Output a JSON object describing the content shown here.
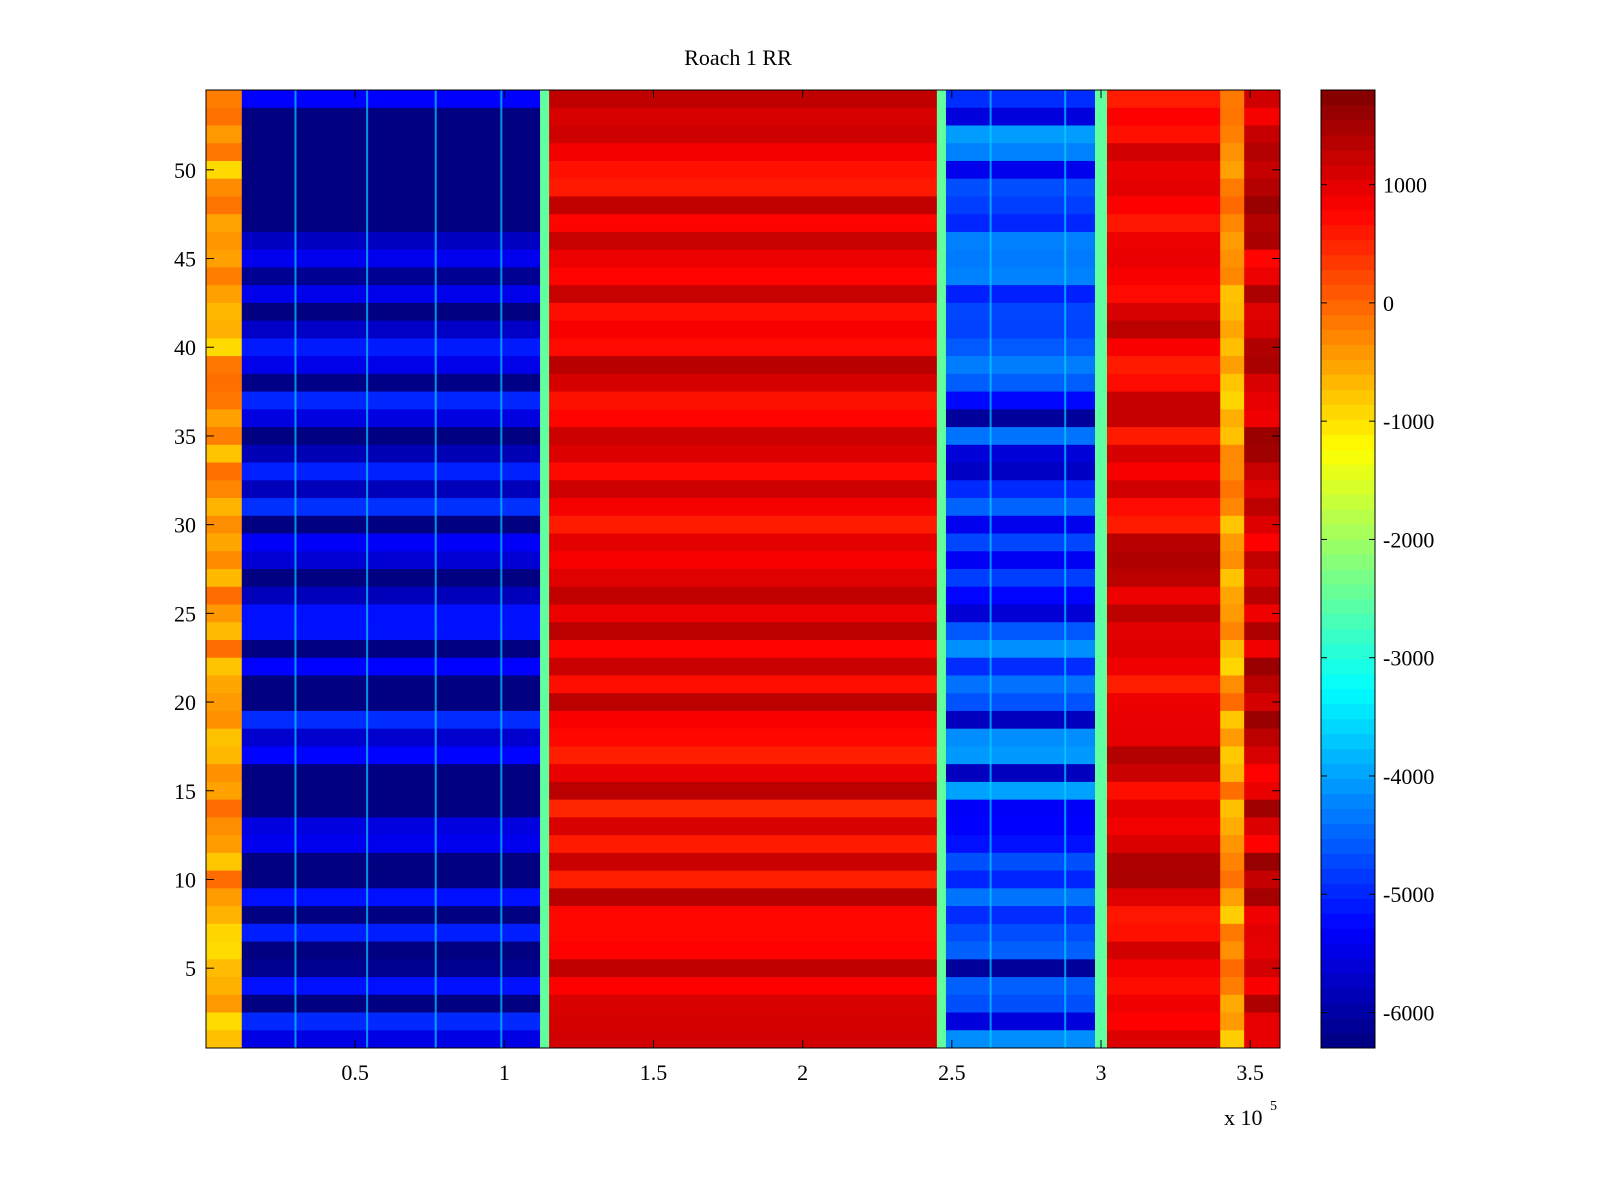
{
  "chart_data": {
    "type": "heatmap",
    "title": "Roach 1 RR",
    "xlabel": "",
    "ylabel": "",
    "x_multiplier_label": "x 10",
    "x_multiplier_exponent": "5",
    "xlim": [
      0,
      360000
    ],
    "ylim": [
      0.5,
      54.5
    ],
    "x_ticks": [
      50000,
      100000,
      150000,
      200000,
      250000,
      300000,
      350000
    ],
    "x_tick_labels": [
      "0.5",
      "1",
      "1.5",
      "2",
      "2.5",
      "3",
      "3.5"
    ],
    "y_ticks": [
      5,
      10,
      15,
      20,
      25,
      30,
      35,
      40,
      45,
      50
    ],
    "y_tick_labels": [
      "5",
      "10",
      "15",
      "20",
      "25",
      "30",
      "35",
      "40",
      "45",
      "50"
    ],
    "colorbar": {
      "colormap": "jet",
      "clim": [
        -6300,
        1800
      ],
      "ticks": [
        1000,
        0,
        -1000,
        -2000,
        -3000,
        -4000,
        -5000,
        -6000
      ],
      "tick_labels": [
        "1000",
        "0",
        "-1000",
        "-2000",
        "-3000",
        "-4000",
        "-5000",
        "-6000"
      ]
    },
    "rows": 54,
    "bands": [
      {
        "x_start": 0,
        "x_end": 12000,
        "level": -500
      },
      {
        "x_start": 12000,
        "x_end": 112000,
        "level": -6000
      },
      {
        "x_start": 115000,
        "x_end": 245000,
        "level": 900
      },
      {
        "x_start": 248000,
        "x_end": 298000,
        "level": -5000
      },
      {
        "x_start": 302000,
        "x_end": 340000,
        "level": 1000
      },
      {
        "x_start": 340000,
        "x_end": 348000,
        "level": -500
      },
      {
        "x_start": 348000,
        "x_end": 360000,
        "level": 1200
      }
    ],
    "spike_lines_x": [
      30000,
      54000,
      77000,
      99000,
      263000,
      288000
    ]
  }
}
